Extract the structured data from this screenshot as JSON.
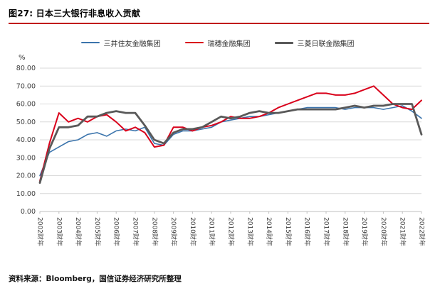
{
  "header": {
    "title": "图27: 日本三大银行非息收入贡献",
    "accent_color": "#c00000"
  },
  "source": "资料来源：Bloomberg，国信证券经济研究所整理",
  "chart_data": {
    "type": "line",
    "title": "日本三大银行非息收入贡献",
    "unit_label": "%",
    "ylim": [
      0,
      80
    ],
    "ytick_step": 10,
    "ytick_decimals": 2,
    "grid": true,
    "legend_position": "top",
    "x_labels": [
      "2002财年",
      "2003财年",
      "2004财年",
      "2005财年",
      "2006财年",
      "2007财年",
      "2008财年",
      "2009财年",
      "2010财年",
      "2011财年",
      "2012财年",
      "2013财年",
      "2014财年",
      "2015财年",
      "2016财年",
      "2017财年",
      "2018财年",
      "2019财年",
      "2020财年",
      "2021财年",
      "2022财年"
    ],
    "points_per_year": 2,
    "series": [
      {
        "name": "三井住友金融集团",
        "color": "#3b74ac",
        "width": 1.6,
        "values": [
          20,
          33,
          36,
          39,
          40,
          43,
          44,
          42,
          45,
          46,
          45,
          47,
          38,
          37,
          43,
          45,
          45,
          46,
          47,
          50,
          51,
          52,
          53,
          53,
          54,
          55,
          56,
          57,
          58,
          58,
          58,
          58,
          57,
          58,
          58,
          58,
          57,
          58,
          59,
          56,
          52
        ]
      },
      {
        "name": "瑞穗金融集团",
        "color": "#d9001b",
        "width": 2,
        "values": [
          17,
          38,
          55,
          50,
          52,
          50,
          53,
          54,
          50,
          45,
          47,
          44,
          36,
          37,
          47,
          47,
          45,
          47,
          48,
          50,
          53,
          52,
          52,
          53,
          55,
          58,
          60,
          62,
          64,
          66,
          66,
          65,
          65,
          66,
          68,
          70,
          65,
          60,
          58,
          57,
          62
        ]
      },
      {
        "name": "三菱日联金融集团",
        "color": "#595959",
        "width": 2.8,
        "values": [
          16,
          35,
          47,
          47,
          48,
          53,
          53,
          55,
          56,
          55,
          55,
          48,
          40,
          38,
          44,
          46,
          46,
          47,
          50,
          53,
          52,
          53,
          55,
          56,
          55,
          55,
          56,
          57,
          57,
          57,
          57,
          57,
          58,
          59,
          58,
          59,
          59,
          60,
          60,
          60,
          43
        ]
      }
    ]
  }
}
